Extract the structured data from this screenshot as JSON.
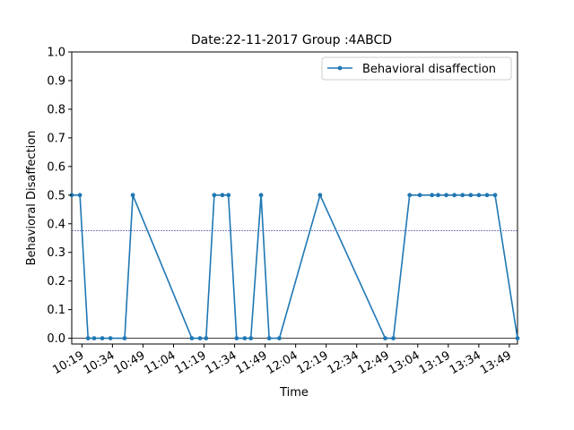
{
  "chart_data": {
    "type": "line",
    "title": "Date:22-11-2017 Group :4ABCD",
    "xlabel": "Time",
    "ylabel": "Behavioral Disaffection",
    "x_unit": "time of day (HH:MM)",
    "xlim": [
      "10:14",
      "13:53"
    ],
    "ylim": [
      -0.02,
      1.0
    ],
    "x_ticks": [
      "10:19",
      "10:34",
      "10:49",
      "11:04",
      "11:19",
      "11:34",
      "11:49",
      "12:04",
      "12:19",
      "12:34",
      "12:49",
      "13:04",
      "13:19",
      "13:34",
      "13:49"
    ],
    "y_ticks": [
      0.0,
      0.1,
      0.2,
      0.3,
      0.4,
      0.5,
      0.6,
      0.7,
      0.8,
      0.9,
      1.0
    ],
    "grid": false,
    "legend_position": "top-right",
    "series": [
      {
        "name": "Behavioral disaffection",
        "color": "#1f77b4",
        "marker": "dot",
        "points": [
          {
            "x": "10:14",
            "y": 0.5
          },
          {
            "x": "10:18",
            "y": 0.5
          },
          {
            "x": "10:22",
            "y": 0.0
          },
          {
            "x": "10:25",
            "y": 0.0
          },
          {
            "x": "10:29",
            "y": 0.0
          },
          {
            "x": "10:33",
            "y": 0.0
          },
          {
            "x": "10:40",
            "y": 0.0
          },
          {
            "x": "10:44",
            "y": 0.5
          },
          {
            "x": "11:13",
            "y": 0.0
          },
          {
            "x": "11:17",
            "y": 0.0
          },
          {
            "x": "11:20",
            "y": 0.0
          },
          {
            "x": "11:24",
            "y": 0.5
          },
          {
            "x": "11:28",
            "y": 0.5
          },
          {
            "x": "11:31",
            "y": 0.5
          },
          {
            "x": "11:35",
            "y": 0.0
          },
          {
            "x": "11:39",
            "y": 0.0
          },
          {
            "x": "11:42",
            "y": 0.0
          },
          {
            "x": "11:47",
            "y": 0.5
          },
          {
            "x": "11:51",
            "y": 0.0
          },
          {
            "x": "11:56",
            "y": 0.0
          },
          {
            "x": "12:16",
            "y": 0.5
          },
          {
            "x": "12:48",
            "y": 0.0
          },
          {
            "x": "12:52",
            "y": 0.0
          },
          {
            "x": "13:00",
            "y": 0.5
          },
          {
            "x": "13:05",
            "y": 0.5
          },
          {
            "x": "13:11",
            "y": 0.5
          },
          {
            "x": "13:14",
            "y": 0.5
          },
          {
            "x": "13:18",
            "y": 0.5
          },
          {
            "x": "13:22",
            "y": 0.5
          },
          {
            "x": "13:26",
            "y": 0.5
          },
          {
            "x": "13:30",
            "y": 0.5
          },
          {
            "x": "13:34",
            "y": 0.5
          },
          {
            "x": "13:38",
            "y": 0.5
          },
          {
            "x": "13:42",
            "y": 0.5
          },
          {
            "x": "13:53",
            "y": 0.0
          }
        ]
      }
    ],
    "reference_lines": [
      {
        "orientation": "horizontal",
        "y": 0.375,
        "style": "dashed",
        "color": "#00008b"
      },
      {
        "orientation": "horizontal",
        "y": 0.0,
        "style": "solid",
        "color": "#000000"
      }
    ]
  }
}
